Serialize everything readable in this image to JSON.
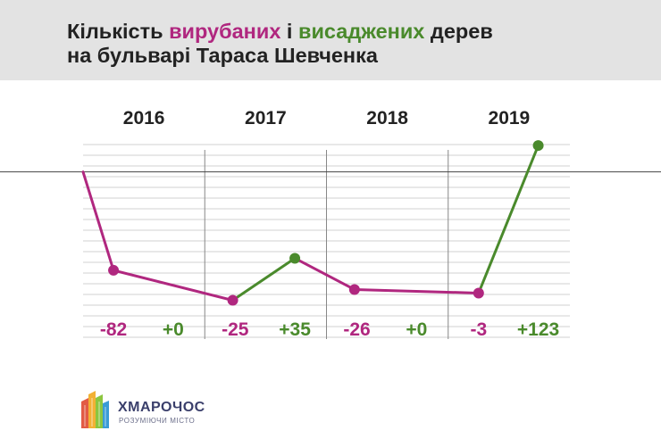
{
  "header": {
    "title_part1": "Кількість ",
    "title_cut": "вирубаних",
    "title_mid": " і ",
    "title_planted": "висаджених",
    "title_part2": " дерев",
    "title_line2": "на бульварі Тараса Шевченка"
  },
  "chart_data": {
    "type": "line",
    "title": "Кількість вирубаних і висаджених дерев на бульварі Тараса Шевченка",
    "categories": [
      "2016",
      "2017",
      "2018",
      "2019"
    ],
    "series": [
      {
        "name": "вирубаних",
        "values": [
          -82,
          -25,
          -26,
          -3
        ],
        "labels": [
          "-82",
          "-25",
          "-26",
          "-3"
        ]
      },
      {
        "name": "висаджених",
        "values": [
          0,
          35,
          0,
          123
        ],
        "labels": [
          "+0",
          "+35",
          "+0",
          "+123"
        ]
      }
    ],
    "points": [
      {
        "year": "2016",
        "kind": "start",
        "net": -43
      },
      {
        "year": "2016",
        "kind": "cut",
        "net": -125
      },
      {
        "year": "2017",
        "kind": "cut",
        "net": -150
      },
      {
        "year": "2017",
        "kind": "plant",
        "net": -115
      },
      {
        "year": "2018",
        "kind": "cut",
        "net": -141
      },
      {
        "year": "2019",
        "kind": "cut",
        "net": -144
      },
      {
        "year": "2019",
        "kind": "plant",
        "net": -21
      }
    ],
    "ylim": [
      -160,
      -15
    ],
    "zero_line": -43,
    "grid": true,
    "xlabel": "",
    "ylabel": ""
  },
  "colors": {
    "cut": "#b0277f",
    "plant": "#4a8a2c",
    "grid": "#d2d2d2",
    "divider": "#888888",
    "text": "#222222"
  },
  "logo": {
    "name": "ХМАРОЧОС",
    "tagline": "РОЗУМІЮЧИ МІСТО"
  }
}
